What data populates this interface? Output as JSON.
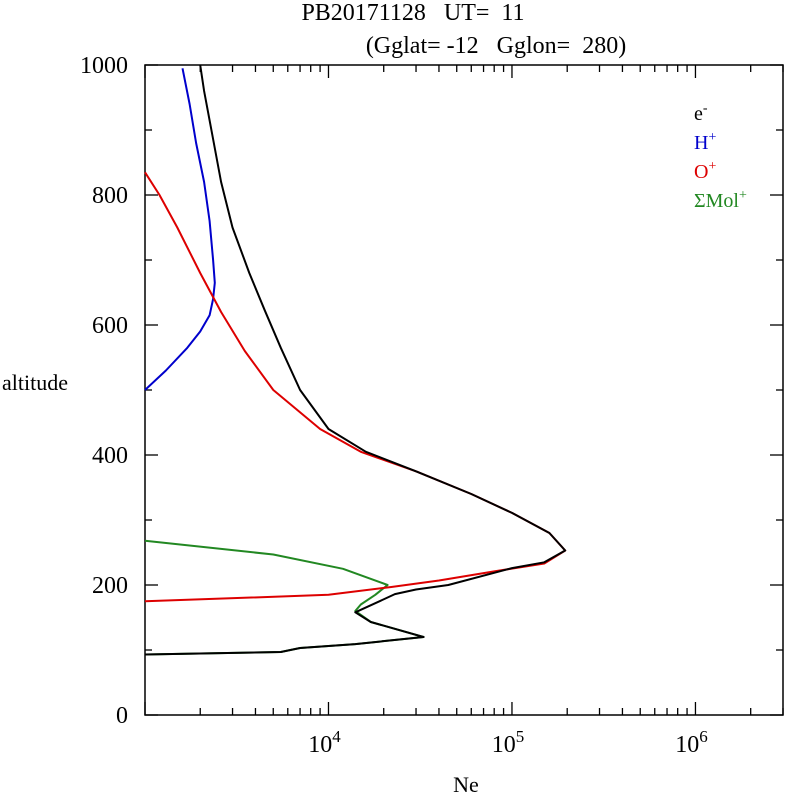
{
  "header": {
    "title_line1": "PB20171128   UT=  11",
    "title_line2": "(Gglat= -12   Gglon=  280)"
  },
  "colors": {
    "axis": "#000000",
    "electron": "#000000",
    "hydrogen": "#0000cc",
    "oxygen": "#dd0000",
    "molecular": "#228822"
  },
  "chart_data": {
    "type": "line",
    "xlabel": "Ne",
    "ylabel": "altitude",
    "xscale": "log",
    "xlim": [
      1000,
      3000000
    ],
    "ylim": [
      0,
      1000
    ],
    "x_ticks": [
      {
        "value": 10000,
        "base": "10",
        "exp": "4"
      },
      {
        "value": 100000,
        "base": "10",
        "exp": "5"
      },
      {
        "value": 1000000,
        "base": "10",
        "exp": "6"
      }
    ],
    "y_ticks": [
      {
        "value": 0,
        "label": "0"
      },
      {
        "value": 200,
        "label": "200"
      },
      {
        "value": 400,
        "label": "400"
      },
      {
        "value": 600,
        "label": "600"
      },
      {
        "value": 800,
        "label": "800"
      },
      {
        "value": 1000,
        "label": "1000"
      }
    ],
    "legend_position": "top-right",
    "legend": [
      {
        "key": "electron",
        "base": "e",
        "sup": "-"
      },
      {
        "key": "hydrogen",
        "base": "H",
        "sup": "+"
      },
      {
        "key": "oxygen",
        "base": "O",
        "sup": "+"
      },
      {
        "key": "molecular",
        "base": "ΣMol",
        "sup": "+"
      }
    ],
    "series": [
      {
        "key": "electron",
        "points": [
          [
            1000,
            93
          ],
          [
            5500,
            97
          ],
          [
            6200,
            100
          ],
          [
            7000,
            103
          ],
          [
            14000,
            109
          ],
          [
            33000,
            120
          ],
          [
            17000,
            143
          ],
          [
            14000,
            158
          ],
          [
            18000,
            172
          ],
          [
            23000,
            186
          ],
          [
            30000,
            193
          ],
          [
            45000,
            200
          ],
          [
            100000,
            226
          ],
          [
            150000,
            235
          ],
          [
            195000,
            253
          ],
          [
            160000,
            280
          ],
          [
            100000,
            311
          ],
          [
            60000,
            340
          ],
          [
            30000,
            375
          ],
          [
            16000,
            405
          ],
          [
            10000,
            440
          ],
          [
            7000,
            500
          ],
          [
            5500,
            565
          ],
          [
            4500,
            622
          ],
          [
            3700,
            680
          ],
          [
            3000,
            750
          ],
          [
            2600,
            820
          ],
          [
            2300,
            900
          ],
          [
            2100,
            960
          ],
          [
            2000,
            1000
          ]
        ]
      },
      {
        "key": "hydrogen",
        "points": [
          [
            1000,
            500
          ],
          [
            1300,
            530
          ],
          [
            1700,
            565
          ],
          [
            2000,
            590
          ],
          [
            2250,
            615
          ],
          [
            2350,
            640
          ],
          [
            2400,
            665
          ],
          [
            2350,
            700
          ],
          [
            2250,
            760
          ],
          [
            2100,
            820
          ],
          [
            1900,
            880
          ],
          [
            1750,
            940
          ],
          [
            1600,
            995
          ]
        ]
      },
      {
        "key": "oxygen",
        "points": [
          [
            1000,
            175
          ],
          [
            10000,
            185
          ],
          [
            22000,
            197
          ],
          [
            40000,
            207
          ],
          [
            80000,
            221
          ],
          [
            150000,
            233
          ],
          [
            195000,
            253
          ],
          [
            160000,
            280
          ],
          [
            100000,
            311
          ],
          [
            60000,
            340
          ],
          [
            30000,
            375
          ],
          [
            15000,
            405
          ],
          [
            9000,
            440
          ],
          [
            5000,
            500
          ],
          [
            3500,
            560
          ],
          [
            2600,
            620
          ],
          [
            2000,
            680
          ],
          [
            1500,
            750
          ],
          [
            1200,
            800
          ],
          [
            1000,
            835
          ]
        ]
      },
      {
        "key": "molecular",
        "points": [
          [
            1000,
            268
          ],
          [
            5000,
            247
          ],
          [
            12000,
            225
          ],
          [
            21000,
            200
          ],
          [
            18000,
            185
          ],
          [
            15000,
            170
          ],
          [
            14000,
            160
          ],
          [
            17000,
            143
          ],
          [
            33000,
            120
          ],
          [
            14000,
            109
          ],
          [
            7000,
            103
          ],
          [
            6200,
            100
          ],
          [
            5500,
            97
          ],
          [
            1000,
            93
          ]
        ]
      }
    ]
  }
}
